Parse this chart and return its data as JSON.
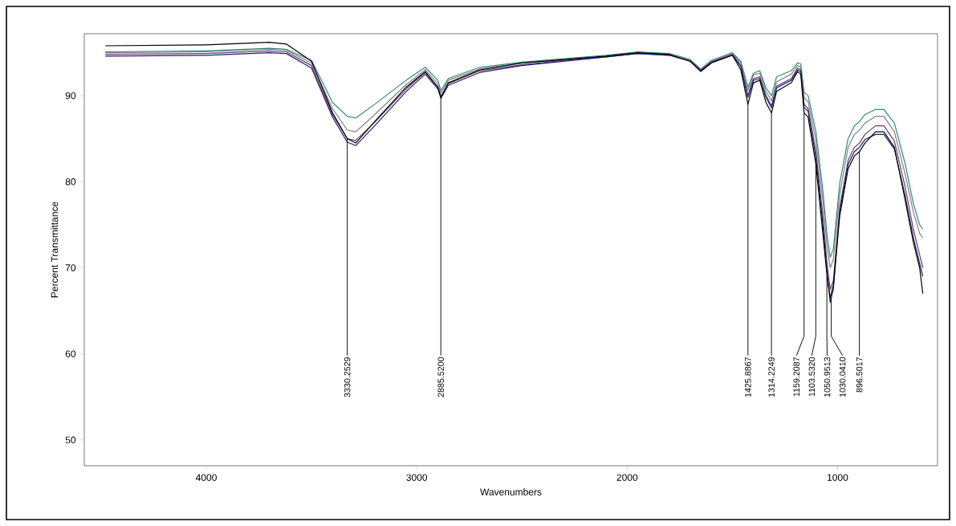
{
  "chart_data": {
    "type": "line",
    "xlabel": "Wavenumbers",
    "ylabel": "Percent Transmittance",
    "xlim": [
      4580,
      525
    ],
    "ylim": [
      47,
      97.2
    ],
    "xticks": [
      4000,
      3000,
      2000,
      1000
    ],
    "yticks": [
      50,
      60,
      70,
      80,
      90
    ],
    "grid": false,
    "marker": "none",
    "line_style": "solid",
    "x": [
      4480,
      4000,
      3700,
      3620,
      3500,
      3400,
      3330,
      3290,
      3200,
      3050,
      2960,
      2900,
      2885,
      2850,
      2700,
      2500,
      2300,
      2100,
      1950,
      1800,
      1700,
      1650,
      1600,
      1500,
      1460,
      1426,
      1400,
      1370,
      1340,
      1314,
      1290,
      1220,
      1190,
      1175,
      1159,
      1140,
      1103,
      1070,
      1050,
      1035,
      1020,
      990,
      950,
      920,
      896,
      870,
      820,
      780,
      730,
      680,
      640,
      610,
      595
    ],
    "series": [
      {
        "color": "#2e8b7a",
        "values": [
          95.1,
          95.2,
          95.5,
          95.4,
          94.1,
          89.2,
          87.6,
          87.4,
          89.0,
          91.8,
          93.3,
          91.8,
          90.6,
          92.0,
          93.3,
          93.9,
          94.3,
          94.7,
          95.1,
          94.9,
          94.2,
          93.1,
          94.1,
          95.0,
          94.0,
          91.0,
          92.6,
          92.9,
          90.9,
          90.0,
          92.2,
          92.9,
          93.8,
          93.7,
          90.4,
          90.0,
          85.8,
          79.0,
          73.8,
          71.2,
          72.2,
          79.8,
          85.0,
          86.5,
          87.0,
          87.8,
          88.4,
          88.4,
          86.8,
          82.2,
          77.5,
          75.0,
          74.5
        ]
      },
      {
        "color": "#808080",
        "values": [
          95.0,
          95.1,
          95.4,
          95.3,
          93.8,
          88.5,
          86.0,
          85.8,
          87.8,
          91.3,
          93.0,
          91.4,
          90.3,
          91.8,
          93.1,
          93.8,
          94.2,
          94.6,
          95.0,
          94.8,
          94.1,
          93.0,
          94.0,
          94.9,
          93.8,
          90.6,
          92.4,
          92.6,
          90.5,
          89.4,
          91.6,
          92.5,
          93.5,
          93.3,
          89.8,
          89.3,
          84.8,
          77.8,
          72.5,
          70.0,
          71.0,
          78.5,
          84.0,
          85.5,
          86.0,
          86.8,
          87.6,
          87.6,
          85.8,
          81.0,
          76.5,
          74.0,
          73.5
        ]
      },
      {
        "color": "#6b3a6b",
        "values": [
          94.8,
          94.9,
          95.2,
          95.1,
          93.5,
          87.8,
          85.0,
          84.8,
          86.9,
          90.8,
          92.7,
          91.0,
          89.9,
          91.4,
          92.9,
          93.6,
          94.1,
          94.5,
          94.9,
          94.7,
          94.0,
          92.9,
          93.9,
          94.8,
          93.5,
          90.0,
          92.0,
          92.2,
          90.0,
          88.8,
          91.1,
          92.0,
          93.2,
          93.0,
          89.0,
          88.5,
          83.5,
          76.0,
          70.5,
          67.5,
          68.5,
          77.0,
          82.5,
          84.0,
          84.5,
          85.5,
          86.5,
          86.5,
          84.7,
          79.5,
          74.5,
          71.5,
          70.0
        ]
      },
      {
        "color": "#1c1c6e",
        "values": [
          94.6,
          94.7,
          95.0,
          94.9,
          93.2,
          87.5,
          84.6,
          84.2,
          86.5,
          90.5,
          92.5,
          90.8,
          89.7,
          91.2,
          92.7,
          93.5,
          94.0,
          94.5,
          94.9,
          94.7,
          94.0,
          92.9,
          93.9,
          94.7,
          93.4,
          89.8,
          91.8,
          92.0,
          89.8,
          88.6,
          90.9,
          91.8,
          93.0,
          92.8,
          88.6,
          88.2,
          82.8,
          75.0,
          69.5,
          66.0,
          67.5,
          76.5,
          82.0,
          83.5,
          84.0,
          84.9,
          85.5,
          85.5,
          83.8,
          78.5,
          73.5,
          70.5,
          69.0
        ]
      },
      {
        "color": "#000000",
        "values": [
          95.8,
          95.9,
          96.2,
          96.0,
          94.0,
          88.0,
          85.0,
          84.5,
          87.0,
          91.0,
          92.8,
          91.0,
          89.8,
          91.5,
          93.0,
          93.8,
          94.2,
          94.6,
          95.0,
          94.8,
          94.0,
          92.8,
          93.8,
          94.7,
          93.0,
          89.0,
          91.5,
          91.8,
          89.2,
          88.0,
          90.5,
          91.5,
          92.8,
          92.5,
          88.0,
          87.5,
          82.0,
          74.0,
          69.0,
          66.5,
          68.0,
          76.0,
          81.5,
          83.0,
          83.5,
          84.5,
          85.8,
          85.8,
          84.0,
          78.0,
          73.0,
          70.0,
          67.0
        ]
      }
    ],
    "annotations": [
      {
        "text": "3330.2529",
        "x": 3330.2529,
        "y": 85.0
      },
      {
        "text": "2885.5200",
        "x": 2885.52,
        "y": 89.8
      },
      {
        "text": "1425.8867",
        "x": 1425.8867,
        "y": 89.0
      },
      {
        "text": "1314.2249",
        "x": 1314.2249,
        "y": 88.0
      },
      {
        "text": "1159.2087",
        "x": 1159.2087,
        "y": 88.0
      },
      {
        "text": "1103.5320",
        "x": 1103.532,
        "y": 82.0
      },
      {
        "text": "1050.9513",
        "x": 1050.9513,
        "y": 69.0
      },
      {
        "text": "1030.0410",
        "x": 1030.041,
        "y": 66.5
      },
      {
        "text": "896.5017",
        "x": 896.5017,
        "y": 83.5
      }
    ]
  }
}
